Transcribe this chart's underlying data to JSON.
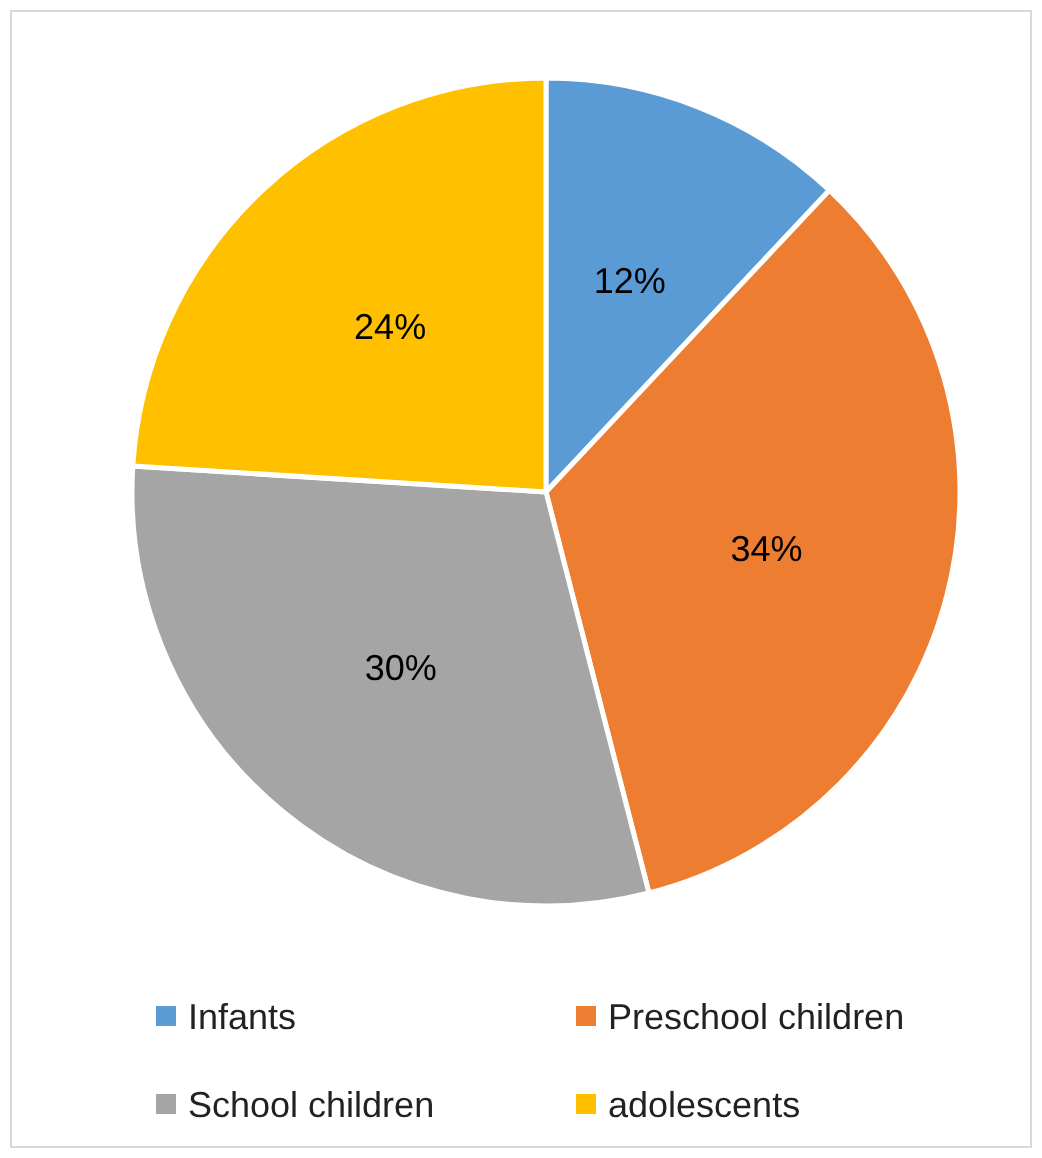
{
  "chart_data": {
    "type": "pie",
    "categories": [
      "Infants",
      "Preschool children",
      "School children",
      "adolescents"
    ],
    "values": [
      12,
      34,
      30,
      24
    ],
    "value_labels": [
      "12%",
      "34%",
      "30%",
      "24%"
    ],
    "colors": [
      "#5b9bd5",
      "#ed7d31",
      "#a5a5a5",
      "#ffc000"
    ],
    "legend": "bottom"
  }
}
